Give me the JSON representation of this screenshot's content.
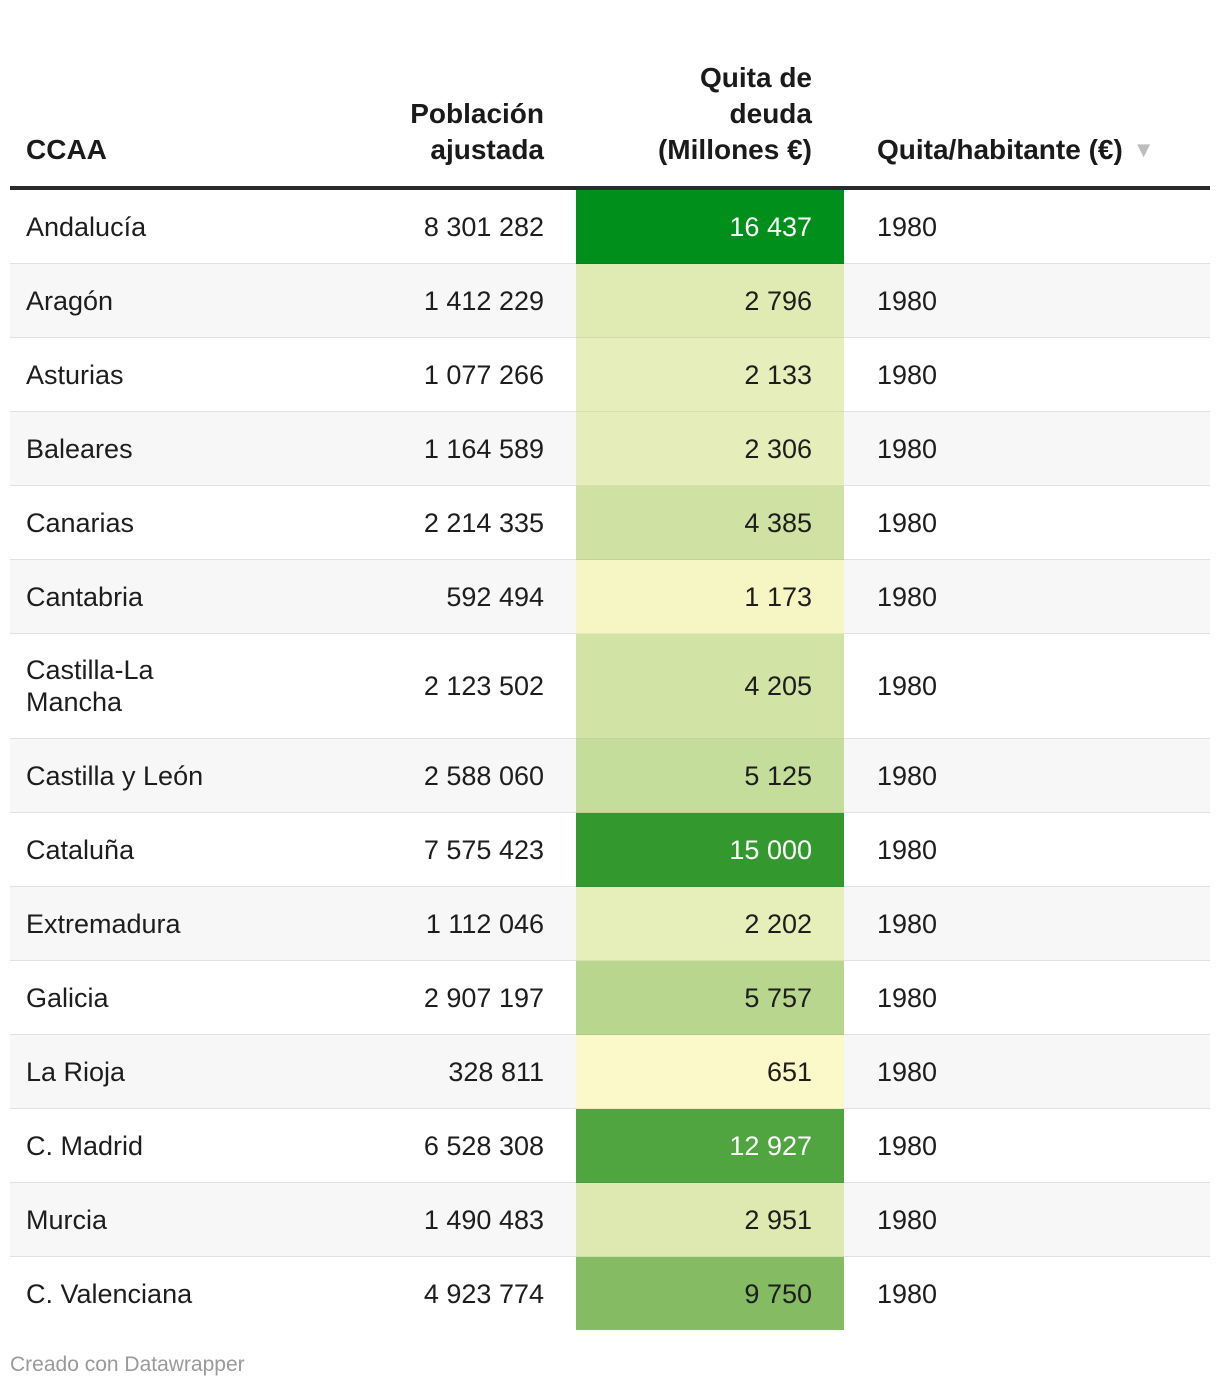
{
  "headers": {
    "ccaa": "CCAA",
    "population": [
      "Población",
      "ajustada"
    ],
    "debt": [
      "Quita de",
      "deuda",
      "(Millones €)"
    ],
    "per_capita": "Quita/habitante (€)",
    "sort_icon": "▼"
  },
  "rows": [
    {
      "name": "Andalucía",
      "population": "8 301 282",
      "debt": "16 437",
      "debt_value": 16437,
      "per_capita": "1980",
      "bg": "#008f1b",
      "fg": "#ffffff"
    },
    {
      "name": "Aragón",
      "population": "1 412 229",
      "debt": "2 796",
      "debt_value": 2796,
      "per_capita": "1980",
      "bg": "#e0ebb4",
      "fg": "#1d1d1d"
    },
    {
      "name": "Asturias",
      "population": "1 077 266",
      "debt": "2 133",
      "debt_value": 2133,
      "per_capita": "1980",
      "bg": "#e6efbb",
      "fg": "#1d1d1d"
    },
    {
      "name": "Baleares",
      "population": "1 164 589",
      "debt": "2 306",
      "debt_value": 2306,
      "per_capita": "1980",
      "bg": "#e5eeba",
      "fg": "#1d1d1d"
    },
    {
      "name": "Canarias",
      "population": "2 214 335",
      "debt": "4 385",
      "debt_value": 4385,
      "per_capita": "1980",
      "bg": "#cfe2a3",
      "fg": "#1d1d1d"
    },
    {
      "name": "Cantabria",
      "population": "592 494",
      "debt": "1 173",
      "debt_value": 1173,
      "per_capita": "1980",
      "bg": "#f6f6c4",
      "fg": "#1d1d1d"
    },
    {
      "name": "Castilla-La Mancha",
      "population": "2 123 502",
      "debt": "4 205",
      "debt_value": 4205,
      "per_capita": "1980",
      "bg": "#d1e3a5",
      "fg": "#1d1d1d",
      "tall": true
    },
    {
      "name": "Castilla y León",
      "population": "2 588 060",
      "debt": "5 125",
      "debt_value": 5125,
      "per_capita": "1980",
      "bg": "#c5dd9b",
      "fg": "#1d1d1d"
    },
    {
      "name": "Cataluña",
      "population": "7 575 423",
      "debt": "15 000",
      "debt_value": 15000,
      "per_capita": "1980",
      "bg": "#33992e",
      "fg": "#ffffff"
    },
    {
      "name": "Extremadura",
      "population": "1 112 046",
      "debt": "2 202",
      "debt_value": 2202,
      "per_capita": "1980",
      "bg": "#e6efba",
      "fg": "#1d1d1d"
    },
    {
      "name": "Galicia",
      "population": "2 907 197",
      "debt": "5 757",
      "debt_value": 5757,
      "per_capita": "1980",
      "bg": "#b9d68f",
      "fg": "#1d1d1d"
    },
    {
      "name": "La Rioja",
      "population": "328 811",
      "debt": "651",
      "debt_value": 651,
      "per_capita": "1980",
      "bg": "#fbf9c9",
      "fg": "#1d1d1d"
    },
    {
      "name": "C. Madrid",
      "population": "6 528 308",
      "debt": "12 927",
      "debt_value": 12927,
      "per_capita": "1980",
      "bg": "#51a541",
      "fg": "#ffffff"
    },
    {
      "name": "Murcia",
      "population": "1 490 483",
      "debt": "2 951",
      "debt_value": 2951,
      "per_capita": "1980",
      "bg": "#dde9b0",
      "fg": "#1d1d1d"
    },
    {
      "name": "C. Valenciana",
      "population": "4 923 774",
      "debt": "9 750",
      "debt_value": 9750,
      "per_capita": "1980",
      "bg": "#85bc63",
      "fg": "#1d1d1d"
    }
  ],
  "footer": "Creado con Datawrapper"
}
